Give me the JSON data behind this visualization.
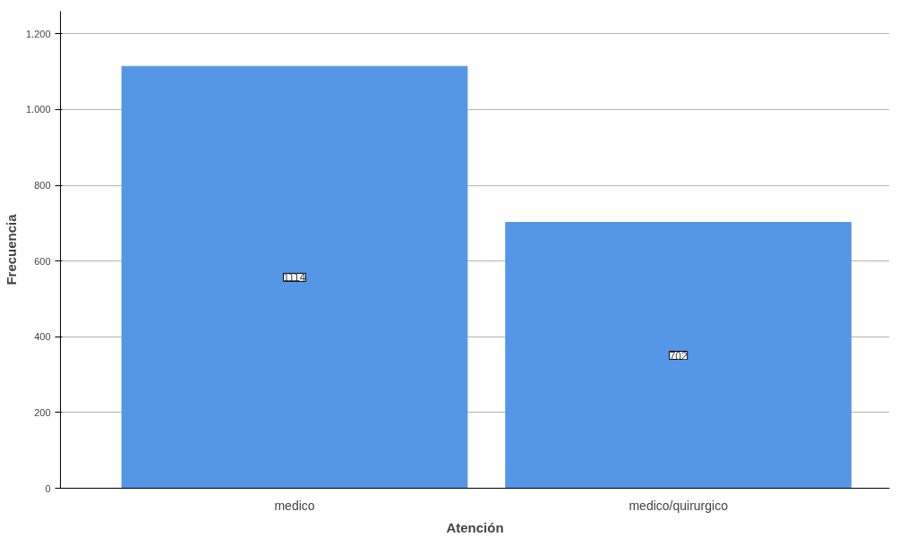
{
  "chart_data": {
    "type": "bar",
    "xlabel": "Atención",
    "ylabel": "Frecuencia",
    "categories": [
      "medico",
      "medico/quirurgico"
    ],
    "values": [
      1114,
      702
    ],
    "color": "#5596e6",
    "ylim": [
      0,
      1260
    ],
    "yticks": [
      0,
      200,
      400,
      600,
      800,
      {
        "value": 1000,
        "label": "1.000"
      },
      {
        "value": 1200,
        "label": "1.200"
      }
    ],
    "grid": "y",
    "data_labels": true
  }
}
